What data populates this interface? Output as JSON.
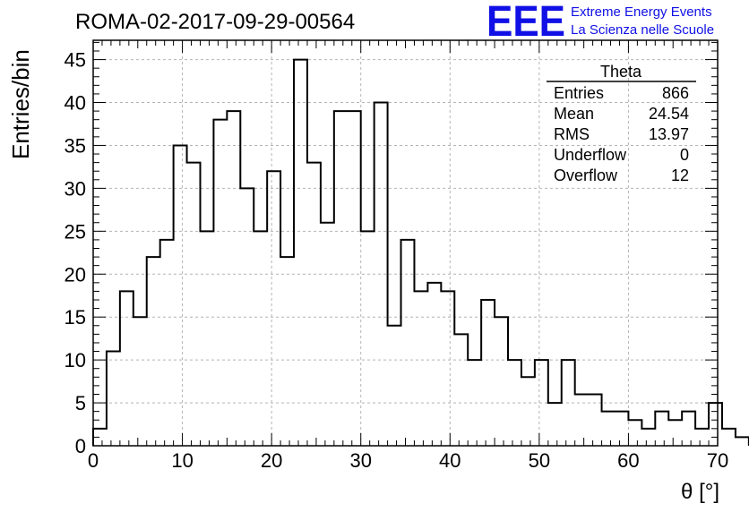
{
  "chart_data": {
    "type": "histogram",
    "title": "ROMA-02-2017-09-29-00564",
    "xlabel": "θ [°]",
    "ylabel": "Entries/bin",
    "xlim": [
      0,
      70
    ],
    "ylim": [
      0,
      47.25
    ],
    "grid": true,
    "bin_width": 1.5,
    "x_ticks": [
      0,
      10,
      20,
      30,
      40,
      50,
      60,
      70
    ],
    "y_ticks": [
      0,
      5,
      10,
      15,
      20,
      25,
      30,
      35,
      40,
      45
    ],
    "values": [
      2,
      11,
      18,
      15,
      22,
      24,
      35,
      33,
      25,
      38,
      39,
      30,
      25,
      32,
      22,
      45,
      33,
      26,
      39,
      39,
      25,
      40,
      14,
      24,
      18,
      19,
      18,
      13,
      10,
      17,
      15,
      10,
      8,
      10,
      5,
      10,
      6,
      6,
      4,
      4,
      3,
      2,
      4,
      3,
      4,
      2,
      5,
      2,
      1
    ],
    "stats": {
      "name": "Theta",
      "rows": [
        {
          "label": "Entries",
          "value": "866"
        },
        {
          "label": "Mean",
          "value": "24.54"
        },
        {
          "label": "RMS",
          "value": "13.97"
        },
        {
          "label": "Underflow",
          "value": "0"
        },
        {
          "label": "Overflow",
          "value": "12"
        }
      ]
    }
  },
  "logo": {
    "mark": "EEE",
    "line1": "Extreme Energy Events",
    "line2": "La Scienza nelle Scuole",
    "color": "#1010e6"
  }
}
